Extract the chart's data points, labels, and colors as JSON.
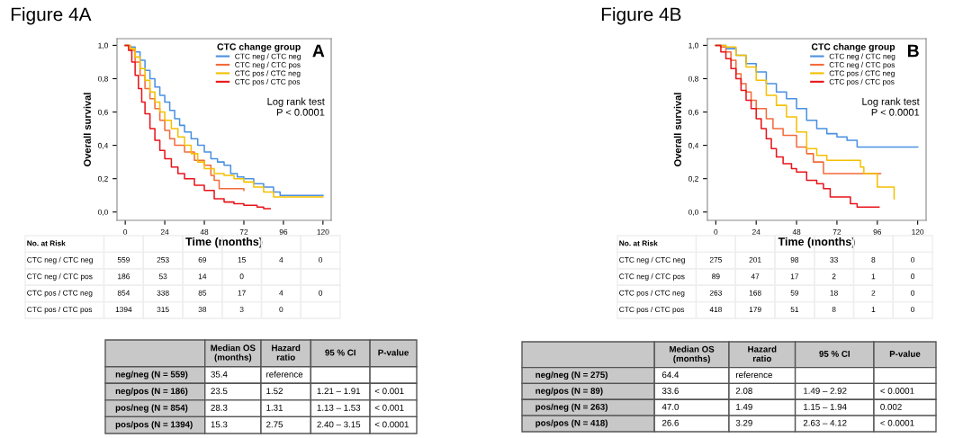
{
  "chart_data": [
    {
      "type": "step",
      "title": "Figure 4A",
      "xlabel": "Time (months)",
      "ylabel": "Overall survival",
      "legend_title": "CTC change group",
      "legend": "top right",
      "grid": false,
      "xlim": [
        -5,
        125
      ],
      "ylim": [
        -0.05,
        1.04
      ],
      "xticks": [
        0,
        24,
        48,
        72,
        96,
        120
      ],
      "yticks": [
        {
          "value": 0.0,
          "label": "0,0"
        },
        {
          "value": 0.2,
          "label": "0,2"
        },
        {
          "value": 0.4,
          "label": "0,4"
        },
        {
          "value": 0.6,
          "label": "0,6"
        },
        {
          "value": 0.8,
          "label": "0,8"
        },
        {
          "value": 1.0,
          "label": "1,0"
        }
      ],
      "annotations": [
        "A",
        "Log rank test\nP < 0.0001"
      ],
      "series": [
        {
          "name": "CTC neg / CTC neg",
          "color": "#4a90e2",
          "x": [
            0,
            3,
            6,
            9,
            12,
            15,
            18,
            21,
            24,
            27,
            30,
            33,
            36,
            40,
            44,
            48,
            52,
            56,
            60,
            64,
            68,
            72,
            78,
            84,
            90,
            94,
            120
          ],
          "values": [
            1.0,
            0.99,
            0.96,
            0.91,
            0.85,
            0.8,
            0.75,
            0.7,
            0.66,
            0.61,
            0.56,
            0.52,
            0.48,
            0.44,
            0.4,
            0.36,
            0.32,
            0.3,
            0.28,
            0.23,
            0.21,
            0.2,
            0.17,
            0.15,
            0.12,
            0.1,
            0.1
          ]
        },
        {
          "name": "CTC neg / CTC pos",
          "color": "#f26b3a",
          "x": [
            0,
            3,
            6,
            9,
            12,
            15,
            18,
            21,
            24,
            27,
            30,
            36,
            42,
            48,
            52,
            54,
            57,
            72
          ],
          "values": [
            1.0,
            0.97,
            0.9,
            0.82,
            0.74,
            0.68,
            0.62,
            0.55,
            0.49,
            0.44,
            0.4,
            0.36,
            0.31,
            0.28,
            0.22,
            0.19,
            0.14,
            0.13
          ]
        },
        {
          "name": "CTC pos / CTC neg",
          "color": "#f5c000",
          "x": [
            0,
            3,
            6,
            9,
            12,
            15,
            18,
            21,
            24,
            28,
            32,
            36,
            40,
            44,
            48,
            54,
            60,
            66,
            72,
            78,
            84,
            90,
            120
          ],
          "values": [
            1.0,
            0.98,
            0.93,
            0.86,
            0.79,
            0.72,
            0.66,
            0.6,
            0.55,
            0.5,
            0.45,
            0.4,
            0.35,
            0.3,
            0.26,
            0.23,
            0.22,
            0.2,
            0.18,
            0.15,
            0.12,
            0.09,
            0.09
          ]
        },
        {
          "name": "CTC pos / CTC pos",
          "color": "#e8141a",
          "x": [
            0,
            2,
            4,
            6,
            8,
            10,
            12,
            15,
            18,
            21,
            24,
            28,
            32,
            36,
            42,
            48,
            54,
            60,
            66,
            72,
            80,
            84,
            88
          ],
          "values": [
            1.0,
            0.97,
            0.9,
            0.82,
            0.74,
            0.66,
            0.59,
            0.5,
            0.43,
            0.37,
            0.32,
            0.27,
            0.23,
            0.2,
            0.16,
            0.13,
            0.08,
            0.06,
            0.05,
            0.04,
            0.03,
            0.02,
            0.02
          ]
        }
      ]
    },
    {
      "type": "other",
      "title": "No. at Risk",
      "y_categories": [
        "CTC neg / CTC neg",
        "CTC neg / CTC pos",
        "CTC pos / CTC neg",
        "CTC pos / CTC pos"
      ],
      "cell_labels": [
        [
          "559",
          "253",
          "69",
          "15",
          "4",
          "0"
        ],
        [
          "186",
          "53",
          "14",
          "0",
          null,
          null
        ],
        [
          "854",
          "338",
          "85",
          "17",
          "4",
          "0"
        ],
        [
          "1394",
          "315",
          "38",
          "3",
          "0",
          null
        ]
      ]
    },
    {
      "type": "other",
      "categories": [
        null,
        "Median OS\n(months)",
        "Hazard\nratio",
        "95 % CI",
        "P-value"
      ],
      "y_categories": [
        "neg/neg (N = 559)",
        "neg/pos (N = 186)",
        "pos/neg (N = 854)",
        "pos/pos (N = 1394)"
      ],
      "cell_labels": [
        [
          "35.4",
          "reference",
          null,
          null
        ],
        [
          "23.5",
          "1.52",
          "1.21 – 1.91",
          "< 0.001"
        ],
        [
          "28.3",
          "1.31",
          "1.13 – 1.53",
          "< 0.001"
        ],
        [
          "15.3",
          "2.75",
          "2.40 – 3.15",
          "< 0.0001"
        ]
      ]
    },
    {
      "type": "step",
      "title": "Figure 4B",
      "xlabel": "Time (months)",
      "ylabel": "Overall survival",
      "legend_title": "CTC change group",
      "legend": "top right",
      "grid": false,
      "xlim": [
        -5,
        125
      ],
      "ylim": [
        -0.05,
        1.04
      ],
      "xticks": [
        0,
        24,
        48,
        72,
        96,
        120
      ],
      "yticks": [
        {
          "value": 0.0,
          "label": "0,0"
        },
        {
          "value": 0.2,
          "label": "0,2"
        },
        {
          "value": 0.4,
          "label": "0,4"
        },
        {
          "value": 0.6,
          "label": "0,6"
        },
        {
          "value": 0.8,
          "label": "0,8"
        },
        {
          "value": 1.0,
          "label": "1,0"
        }
      ],
      "annotations": [
        "B",
        "Log rank test\nP < 0.0001"
      ],
      "series": [
        {
          "name": "CTC neg / CTC neg",
          "color": "#4a90e2",
          "x": [
            0,
            6,
            12,
            18,
            24,
            30,
            36,
            42,
            48,
            54,
            60,
            66,
            72,
            78,
            84,
            120
          ],
          "values": [
            1.0,
            0.98,
            0.94,
            0.89,
            0.84,
            0.77,
            0.72,
            0.68,
            0.62,
            0.55,
            0.5,
            0.47,
            0.45,
            0.43,
            0.39,
            0.39
          ]
        },
        {
          "name": "CTC neg / CTC pos",
          "color": "#f26b3a",
          "x": [
            0,
            3,
            6,
            9,
            12,
            15,
            18,
            21,
            24,
            30,
            34,
            40,
            48,
            54,
            58,
            64,
            98
          ],
          "values": [
            1.0,
            0.99,
            0.96,
            0.91,
            0.83,
            0.77,
            0.72,
            0.67,
            0.62,
            0.56,
            0.5,
            0.46,
            0.39,
            0.35,
            0.3,
            0.23,
            0.23
          ]
        },
        {
          "name": "CTC pos / CTC neg",
          "color": "#f5c000",
          "x": [
            0,
            6,
            12,
            18,
            24,
            30,
            36,
            42,
            48,
            54,
            60,
            66,
            84,
            86,
            88,
            95,
            96,
            103,
            106
          ],
          "values": [
            1.0,
            0.99,
            0.94,
            0.87,
            0.79,
            0.7,
            0.64,
            0.57,
            0.48,
            0.38,
            0.34,
            0.31,
            0.31,
            0.27,
            0.23,
            0.23,
            0.15,
            0.15,
            0.08
          ]
        },
        {
          "name": "CTC pos / CTC pos",
          "color": "#e8141a",
          "x": [
            0,
            3,
            6,
            9,
            12,
            15,
            18,
            21,
            24,
            27,
            30,
            33,
            36,
            40,
            45,
            48,
            54,
            60,
            64,
            68,
            78,
            80,
            84,
            97
          ],
          "values": [
            1.0,
            0.96,
            0.92,
            0.86,
            0.8,
            0.73,
            0.67,
            0.62,
            0.56,
            0.5,
            0.44,
            0.38,
            0.33,
            0.29,
            0.26,
            0.24,
            0.19,
            0.17,
            0.14,
            0.09,
            0.09,
            0.05,
            0.03,
            0.03
          ]
        }
      ]
    },
    {
      "type": "other",
      "title": "No. at Risk",
      "y_categories": [
        "CTC neg / CTC neg",
        "CTC neg / CTC pos",
        "CTC pos / CTC neg",
        "CTC pos / CTC pos"
      ],
      "cell_labels": [
        [
          "275",
          "201",
          "98",
          "33",
          "8",
          "0"
        ],
        [
          "89",
          "47",
          "17",
          "2",
          "1",
          "0"
        ],
        [
          "263",
          "168",
          "59",
          "18",
          "2",
          "0"
        ],
        [
          "418",
          "179",
          "51",
          "8",
          "1",
          "0"
        ]
      ]
    },
    {
      "type": "other",
      "categories": [
        null,
        "Median OS\n(months)",
        "Hazard\nratio",
        "95 % CI",
        "P-value"
      ],
      "y_categories": [
        "neg/neg (N = 275)",
        "neg/pos (N = 89)",
        "pos/neg (N = 263)",
        "pos/pos (N = 418)"
      ],
      "cell_labels": [
        [
          "64.4",
          "reference",
          null,
          null
        ],
        [
          "33.6",
          "2.08",
          "1.49 – 2.92",
          "< 0.0001"
        ],
        [
          "47.0",
          "1.49",
          "1.15 – 1.94",
          "0.002"
        ],
        [
          "26.6",
          "3.29",
          "2.63 – 4.12",
          "< 0.0001"
        ]
      ]
    }
  ]
}
